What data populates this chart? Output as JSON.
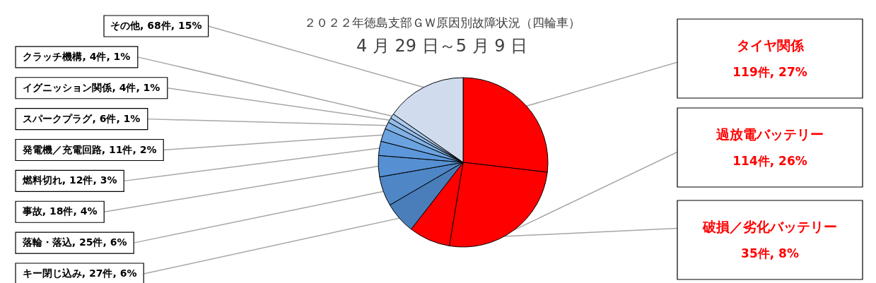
{
  "chart_data": {
    "type": "pie",
    "title": "２０２２年徳島支部ＧＷ原因別故障状況（四輪車）",
    "subtitle": "4 月 29 日～5 月 9 日",
    "categories": [
      "タイヤ関係",
      "過放電バッテリー",
      "破損／劣化バッテリー",
      "キー閉じ込み",
      "落輪・落込",
      "事故",
      "燃料切れ",
      "発電機／充電回路",
      "スパークプラグ",
      "イグニッション関係",
      "クラッチ機構",
      "その他"
    ],
    "values": [
      119,
      114,
      35,
      27,
      25,
      18,
      12,
      11,
      6,
      4,
      4,
      68
    ],
    "value_labels": [
      "119件, 27%",
      "114件, 26%",
      "35件, 8%",
      "27件, 6%",
      "25件, 6%",
      "18件, 4%",
      "12件, 3%",
      "11件, 2%",
      "6件, 1%",
      "4件, 1%",
      "4件, 1%",
      "68件, 15%"
    ],
    "colors": [
      "#ff0000",
      "#ff0000",
      "#ff0000",
      "#4a7ebb",
      "#4f86c6",
      "#5690d2",
      "#5b97da",
      "#6ba3e0",
      "#80b1e6",
      "#95bdeb",
      "#abcaef",
      "#d0dcee"
    ]
  }
}
